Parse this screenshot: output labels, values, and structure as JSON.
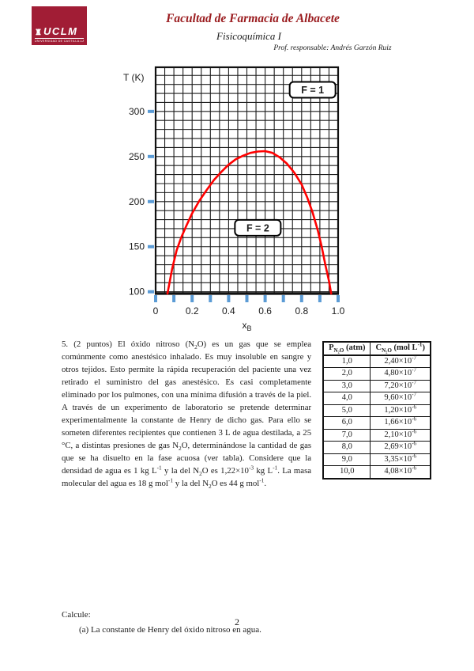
{
  "header": {
    "logo": {
      "acronym": "UCLM",
      "subtext": "UNIVERSIDAD DE CASTILLA-LA MANCHA",
      "color": "#A11D35"
    },
    "faculty": "Facultad de Farmacia de Albacete",
    "course": "Fisicoquímica I",
    "professor": "Prof. responsable: Andrés Garzón Ruiz"
  },
  "chart_data": {
    "type": "line",
    "title": "",
    "xlabel_main": "x",
    "xlabel_sub": "B",
    "ylabel": "T (K)",
    "xlim": [
      0,
      1.0
    ],
    "ylim": [
      98,
      349
    ],
    "x_tick_values": [
      0,
      0.2,
      0.4,
      0.6,
      0.8,
      1.0
    ],
    "x_tick_labels": [
      "0",
      "0.2",
      "0.4",
      "0.6",
      "0.8",
      "1.0"
    ],
    "x_minor_tick_step": 0.1,
    "y_tick_values": [
      100,
      150,
      200,
      250,
      300
    ],
    "grid": {
      "x_step": 0.05,
      "y_step": 10,
      "color": "#1b1b1b",
      "on": true
    },
    "tick_color": "#5B9BD5",
    "legend": "none",
    "annotations": [
      {
        "label": "F = 1",
        "x": 0.86,
        "T": 324
      },
      {
        "label": "F = 2",
        "x": 0.56,
        "T": 171
      }
    ],
    "series": [
      {
        "name": "liquid-liquid coexistence curve",
        "color": "#FF0000",
        "points": [
          [
            0.065,
            98
          ],
          [
            0.09,
            125
          ],
          [
            0.115,
            146
          ],
          [
            0.14,
            160
          ],
          [
            0.17,
            174
          ],
          [
            0.2,
            187
          ],
          [
            0.24,
            201
          ],
          [
            0.28,
            213
          ],
          [
            0.32,
            224
          ],
          [
            0.36,
            233
          ],
          [
            0.4,
            241
          ],
          [
            0.44,
            247
          ],
          [
            0.48,
            251
          ],
          [
            0.52,
            254
          ],
          [
            0.56,
            255.5
          ],
          [
            0.6,
            256
          ],
          [
            0.64,
            254
          ],
          [
            0.68,
            249
          ],
          [
            0.72,
            242
          ],
          [
            0.76,
            232
          ],
          [
            0.8,
            219
          ],
          [
            0.83,
            205
          ],
          [
            0.86,
            188
          ],
          [
            0.89,
            167
          ],
          [
            0.91,
            150
          ],
          [
            0.93,
            130
          ],
          [
            0.95,
            112
          ],
          [
            0.962,
            98
          ]
        ]
      }
    ]
  },
  "problem": {
    "text": "5. (2 puntos) El óxido nitroso (N_{2}O) es un gas que se emplea comúnmente como anestésico inhalado. Es muy insoluble en sangre y otros tejidos. Esto permite la rápida recuperación del paciente una vez retirado el suministro del gas anestésico. Es casi completamente eliminado por los pulmones, con una mínima difusión a través de la piel. A través de un experimento de laboratorio se pretende determinar experimentalmente la constante de Henry de dicho gas. Para ello se someten diferentes recipientes que contienen 3 L de agua destilada, a 25 °C, a distintas presiones de gas N_{2}O, determinándose la cantidad de gas que se ha disuelto en la fase acuosa (ver tabla). Considere que la densidad de agua es 1 kg L^{-1} y la del N_{2}O es 1,22×10^{-3} kg L^{-1}. La masa molecular del agua es 18 g mol^{-1} y la del N_{2}O es 44 g mol^{-1}."
  },
  "table": {
    "headers": [
      "P_{N₂O} (atm)",
      "C_{N₂O} (mol L^{-1})"
    ],
    "rows": [
      [
        "1,0",
        "2,40×10^{-7}"
      ],
      [
        "2,0",
        "4,80×10^{-7}"
      ],
      [
        "3,0",
        "7,20×10^{-7}"
      ],
      [
        "4,0",
        "9,60×10^{-7}"
      ],
      [
        "5,0",
        "1,20×10^{-6}"
      ],
      [
        "6,0",
        "1,66×10^{-6}"
      ],
      [
        "7,0",
        "2,10×10^{-6}"
      ],
      [
        "8,0",
        "2,69×10^{-6}"
      ],
      [
        "9,0",
        "3,35×10^{-6}"
      ],
      [
        "10,0",
        "4,08×10^{-6}"
      ]
    ]
  },
  "calcule": {
    "label": "Calcule:",
    "item_a": "(a)  La constante de Henry del óxido nitroso en agua."
  },
  "footer": {
    "page_number": "2"
  }
}
